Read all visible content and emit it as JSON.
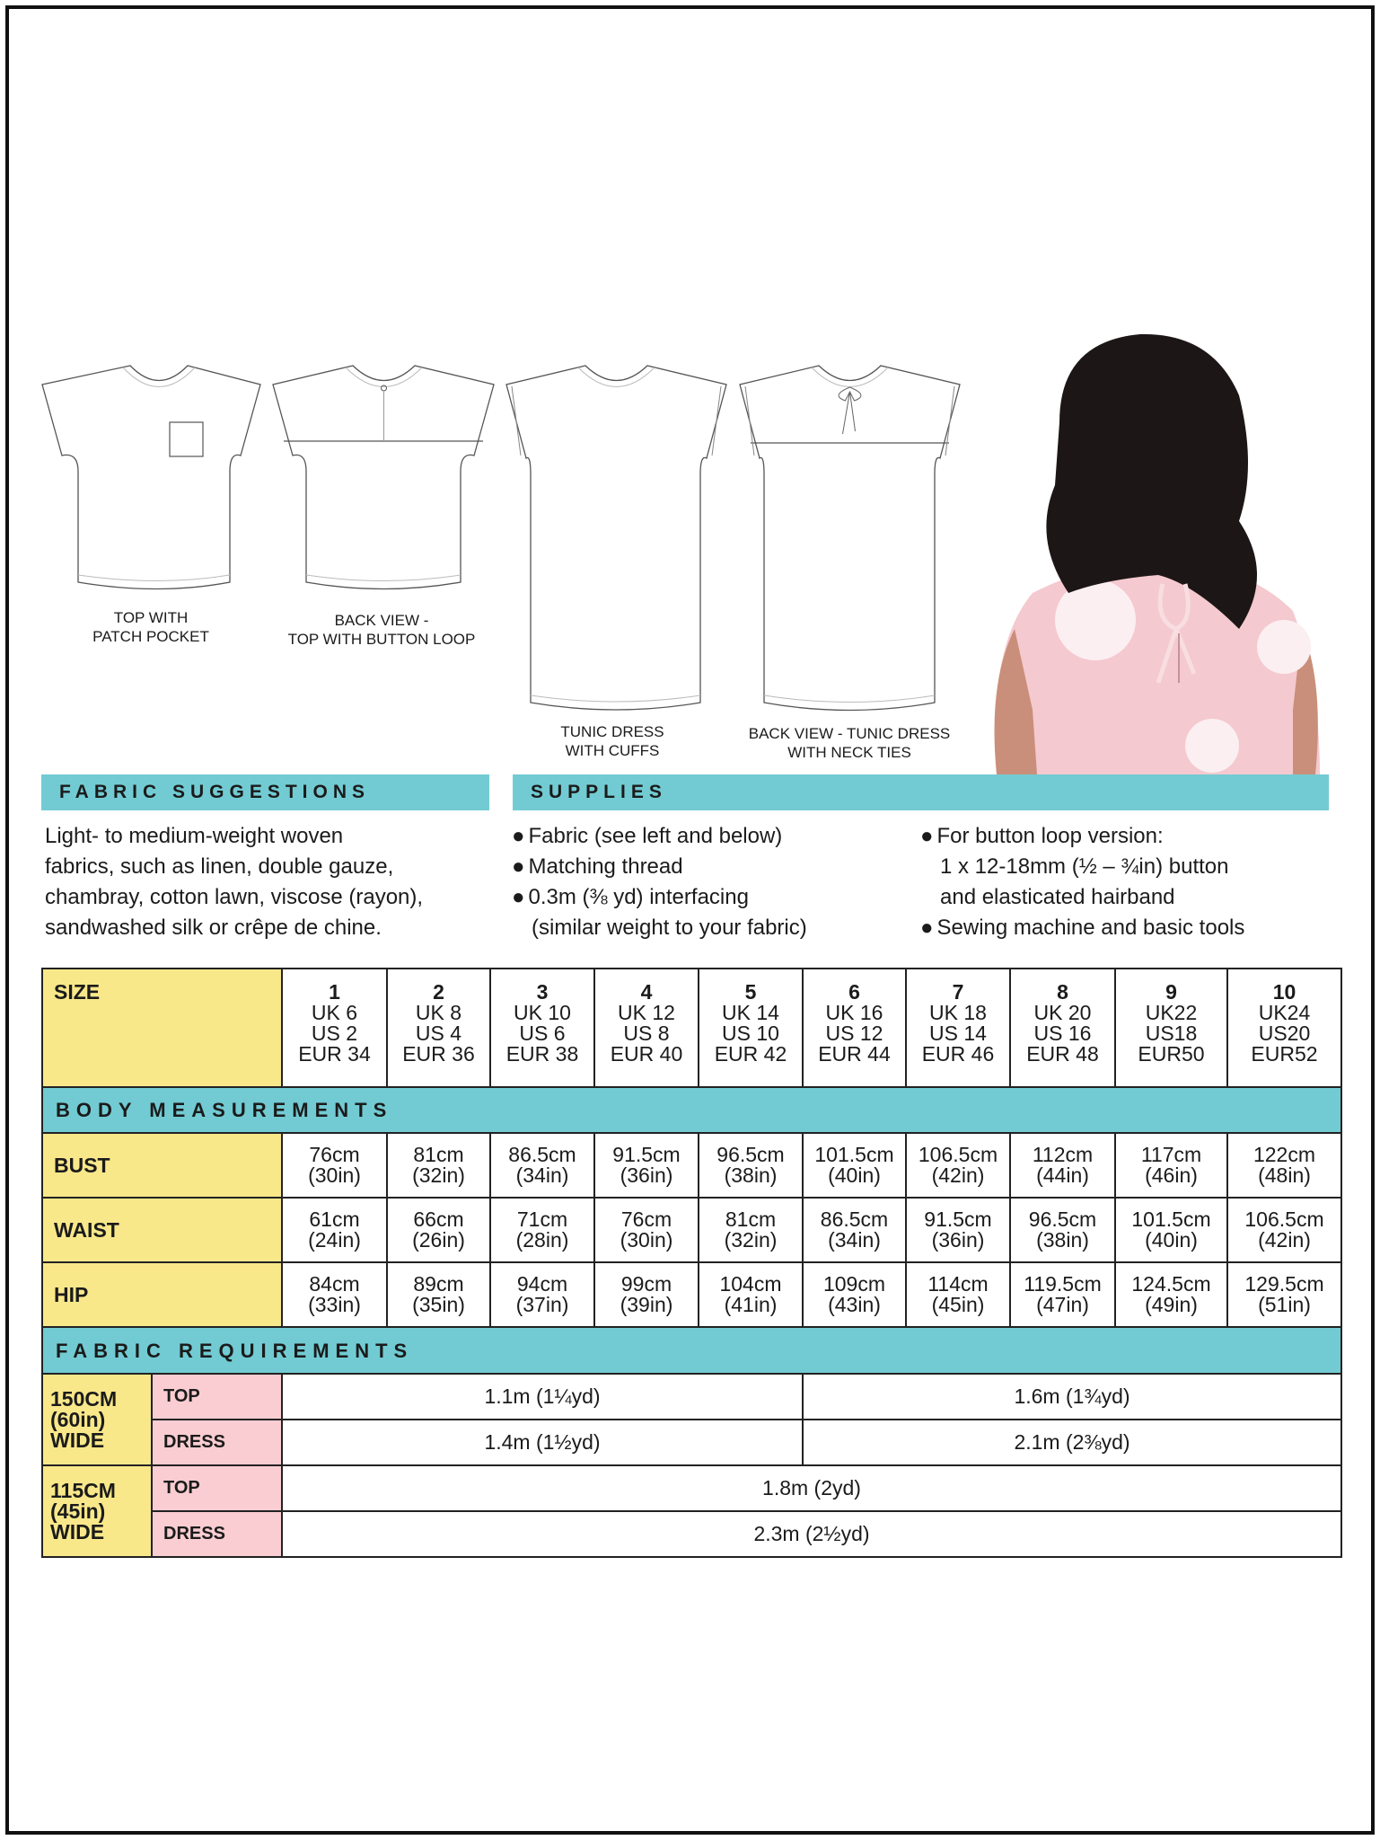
{
  "colors": {
    "teal": "#72cbd3",
    "yellow": "#f9e88a",
    "pink": "#f9cdd1"
  },
  "flats": [
    {
      "label": [
        "TOP WITH",
        "PATCH POCKET"
      ]
    },
    {
      "label": [
        "BACK VIEW -",
        "TOP WITH BUTTON LOOP"
      ]
    },
    {
      "label": [
        "TUNIC DRESS",
        "WITH CUFFS"
      ]
    },
    {
      "label": [
        "BACK VIEW - TUNIC DRESS",
        "WITH NECK TIES"
      ]
    }
  ],
  "photo": {
    "description_icon": "model-photo"
  },
  "fabric_suggestions": {
    "title": "FABRIC SUGGESTIONS",
    "lines": [
      "Light- to medium-weight woven",
      "fabrics, such as linen, double gauze,",
      "chambray, cotton lawn, viscose (rayon),",
      "sandwashed silk or crêpe de chine."
    ]
  },
  "supplies": {
    "title": "SUPPLIES",
    "col1": [
      {
        "text": "Fabric (see left and below)",
        "bullet": true
      },
      {
        "text": "Matching thread",
        "bullet": true
      },
      {
        "text": "0.3m (⅜ yd) interfacing",
        "bullet": true
      },
      {
        "text": "(similar weight to your fabric)",
        "bullet": false
      }
    ],
    "col2": [
      {
        "text": "For button loop version:",
        "bullet": true
      },
      {
        "text": "1 x 12-18mm (½ – ¾in) button",
        "bullet": false
      },
      {
        "text": "and elasticated hairband",
        "bullet": false
      },
      {
        "text": "Sewing machine and basic tools",
        "bullet": true
      }
    ]
  },
  "table": {
    "size_label": "SIZE",
    "sizes": [
      [
        "1",
        "UK 6",
        "US 2",
        "EUR 34"
      ],
      [
        "2",
        "UK 8",
        "US 4",
        "EUR 36"
      ],
      [
        "3",
        "UK 10",
        "US 6",
        "EUR 38"
      ],
      [
        "4",
        "UK 12",
        "US 8",
        "EUR 40"
      ],
      [
        "5",
        "UK 14",
        "US 10",
        "EUR 42"
      ],
      [
        "6",
        "UK 16",
        "US 12",
        "EUR 44"
      ],
      [
        "7",
        "UK 18",
        "US 14",
        "EUR 46"
      ],
      [
        "8",
        "UK 20",
        "US 16",
        "EUR 48"
      ],
      [
        "9",
        "UK22",
        "US18",
        "EUR50"
      ],
      [
        "10",
        "UK24",
        "US20",
        "EUR52"
      ]
    ],
    "body_title": "BODY MEASUREMENTS",
    "measurements": [
      {
        "label": "BUST",
        "values": [
          [
            "76cm",
            "(30in)"
          ],
          [
            "81cm",
            "(32in)"
          ],
          [
            "86.5cm",
            "(34in)"
          ],
          [
            "91.5cm",
            "(36in)"
          ],
          [
            "96.5cm",
            "(38in)"
          ],
          [
            "101.5cm",
            "(40in)"
          ],
          [
            "106.5cm",
            "(42in)"
          ],
          [
            "112cm",
            "(44in)"
          ],
          [
            "117cm",
            "(46in)"
          ],
          [
            "122cm",
            "(48in)"
          ]
        ]
      },
      {
        "label": "WAIST",
        "values": [
          [
            "61cm",
            "(24in)"
          ],
          [
            "66cm",
            "(26in)"
          ],
          [
            "71cm",
            "(28in)"
          ],
          [
            "76cm",
            "(30in)"
          ],
          [
            "81cm",
            "(32in)"
          ],
          [
            "86.5cm",
            "(34in)"
          ],
          [
            "91.5cm",
            "(36in)"
          ],
          [
            "96.5cm",
            "(38in)"
          ],
          [
            "101.5cm",
            "(40in)"
          ],
          [
            "106.5cm",
            "(42in)"
          ]
        ]
      },
      {
        "label": "HIP",
        "values": [
          [
            "84cm",
            "(33in)"
          ],
          [
            "89cm",
            "(35in)"
          ],
          [
            "94cm",
            "(37in)"
          ],
          [
            "99cm",
            "(39in)"
          ],
          [
            "104cm",
            "(41in)"
          ],
          [
            "109cm",
            "(43in)"
          ],
          [
            "114cm",
            "(45in)"
          ],
          [
            "119.5cm",
            "(47in)"
          ],
          [
            "124.5cm",
            "(49in)"
          ],
          [
            "129.5cm",
            "(51in)"
          ]
        ]
      }
    ],
    "fabric_title": "FABRIC REQUIREMENTS",
    "fabric": [
      {
        "width": [
          "150CM",
          "(60in)",
          "WIDE"
        ],
        "rows": [
          {
            "label": "TOP",
            "values": [
              "1.1m (1¼yd)",
              "1.6m (1¾yd)"
            ]
          },
          {
            "label": "DRESS",
            "values": [
              "1.4m (1½yd)",
              "2.1m (2⅜yd)"
            ]
          }
        ]
      },
      {
        "width": [
          "115CM",
          "(45in)",
          "WIDE"
        ],
        "rows": [
          {
            "label": "TOP",
            "values": [
              "1.8m (2yd)"
            ]
          },
          {
            "label": "DRESS",
            "values": [
              "2.3m (2½yd)"
            ]
          }
        ]
      }
    ]
  }
}
